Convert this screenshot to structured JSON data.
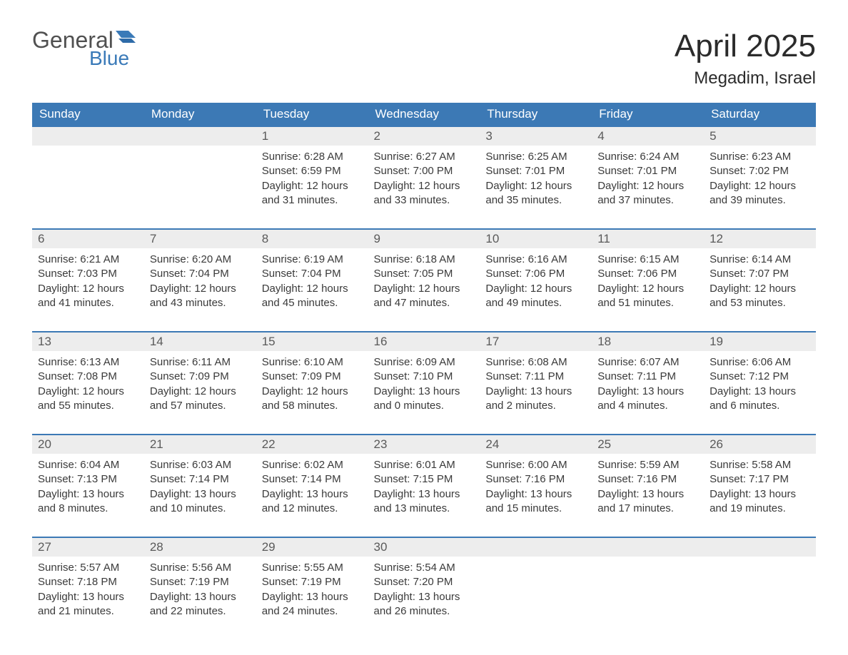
{
  "brand": {
    "general": "General",
    "blue": "Blue"
  },
  "colors": {
    "header_bg": "#3c79b5",
    "header_text": "#ffffff",
    "daynum_bg": "#ededed",
    "daynum_text": "#5a5a5a",
    "border": "#3c79b5",
    "logo_general": "#505050",
    "logo_blue": "#3a7ab8",
    "body_text": "#3a3a3a",
    "background": "#ffffff"
  },
  "title": "April 2025",
  "location": "Megadim, Israel",
  "weekdays": [
    "Sunday",
    "Monday",
    "Tuesday",
    "Wednesday",
    "Thursday",
    "Friday",
    "Saturday"
  ],
  "layout": {
    "cols": 7,
    "rows": 5,
    "first_day_col": 2,
    "days_in_month": 30
  },
  "labels": {
    "sunrise": "Sunrise: ",
    "sunset": "Sunset: ",
    "daylight": "Daylight: "
  },
  "days": [
    {
      "n": 1,
      "sunrise": "6:28 AM",
      "sunset": "6:59 PM",
      "daylight": "12 hours and 31 minutes."
    },
    {
      "n": 2,
      "sunrise": "6:27 AM",
      "sunset": "7:00 PM",
      "daylight": "12 hours and 33 minutes."
    },
    {
      "n": 3,
      "sunrise": "6:25 AM",
      "sunset": "7:01 PM",
      "daylight": "12 hours and 35 minutes."
    },
    {
      "n": 4,
      "sunrise": "6:24 AM",
      "sunset": "7:01 PM",
      "daylight": "12 hours and 37 minutes."
    },
    {
      "n": 5,
      "sunrise": "6:23 AM",
      "sunset": "7:02 PM",
      "daylight": "12 hours and 39 minutes."
    },
    {
      "n": 6,
      "sunrise": "6:21 AM",
      "sunset": "7:03 PM",
      "daylight": "12 hours and 41 minutes."
    },
    {
      "n": 7,
      "sunrise": "6:20 AM",
      "sunset": "7:04 PM",
      "daylight": "12 hours and 43 minutes."
    },
    {
      "n": 8,
      "sunrise": "6:19 AM",
      "sunset": "7:04 PM",
      "daylight": "12 hours and 45 minutes."
    },
    {
      "n": 9,
      "sunrise": "6:18 AM",
      "sunset": "7:05 PM",
      "daylight": "12 hours and 47 minutes."
    },
    {
      "n": 10,
      "sunrise": "6:16 AM",
      "sunset": "7:06 PM",
      "daylight": "12 hours and 49 minutes."
    },
    {
      "n": 11,
      "sunrise": "6:15 AM",
      "sunset": "7:06 PM",
      "daylight": "12 hours and 51 minutes."
    },
    {
      "n": 12,
      "sunrise": "6:14 AM",
      "sunset": "7:07 PM",
      "daylight": "12 hours and 53 minutes."
    },
    {
      "n": 13,
      "sunrise": "6:13 AM",
      "sunset": "7:08 PM",
      "daylight": "12 hours and 55 minutes."
    },
    {
      "n": 14,
      "sunrise": "6:11 AM",
      "sunset": "7:09 PM",
      "daylight": "12 hours and 57 minutes."
    },
    {
      "n": 15,
      "sunrise": "6:10 AM",
      "sunset": "7:09 PM",
      "daylight": "12 hours and 58 minutes."
    },
    {
      "n": 16,
      "sunrise": "6:09 AM",
      "sunset": "7:10 PM",
      "daylight": "13 hours and 0 minutes."
    },
    {
      "n": 17,
      "sunrise": "6:08 AM",
      "sunset": "7:11 PM",
      "daylight": "13 hours and 2 minutes."
    },
    {
      "n": 18,
      "sunrise": "6:07 AM",
      "sunset": "7:11 PM",
      "daylight": "13 hours and 4 minutes."
    },
    {
      "n": 19,
      "sunrise": "6:06 AM",
      "sunset": "7:12 PM",
      "daylight": "13 hours and 6 minutes."
    },
    {
      "n": 20,
      "sunrise": "6:04 AM",
      "sunset": "7:13 PM",
      "daylight": "13 hours and 8 minutes."
    },
    {
      "n": 21,
      "sunrise": "6:03 AM",
      "sunset": "7:14 PM",
      "daylight": "13 hours and 10 minutes."
    },
    {
      "n": 22,
      "sunrise": "6:02 AM",
      "sunset": "7:14 PM",
      "daylight": "13 hours and 12 minutes."
    },
    {
      "n": 23,
      "sunrise": "6:01 AM",
      "sunset": "7:15 PM",
      "daylight": "13 hours and 13 minutes."
    },
    {
      "n": 24,
      "sunrise": "6:00 AM",
      "sunset": "7:16 PM",
      "daylight": "13 hours and 15 minutes."
    },
    {
      "n": 25,
      "sunrise": "5:59 AM",
      "sunset": "7:16 PM",
      "daylight": "13 hours and 17 minutes."
    },
    {
      "n": 26,
      "sunrise": "5:58 AM",
      "sunset": "7:17 PM",
      "daylight": "13 hours and 19 minutes."
    },
    {
      "n": 27,
      "sunrise": "5:57 AM",
      "sunset": "7:18 PM",
      "daylight": "13 hours and 21 minutes."
    },
    {
      "n": 28,
      "sunrise": "5:56 AM",
      "sunset": "7:19 PM",
      "daylight": "13 hours and 22 minutes."
    },
    {
      "n": 29,
      "sunrise": "5:55 AM",
      "sunset": "7:19 PM",
      "daylight": "13 hours and 24 minutes."
    },
    {
      "n": 30,
      "sunrise": "5:54 AM",
      "sunset": "7:20 PM",
      "daylight": "13 hours and 26 minutes."
    }
  ]
}
